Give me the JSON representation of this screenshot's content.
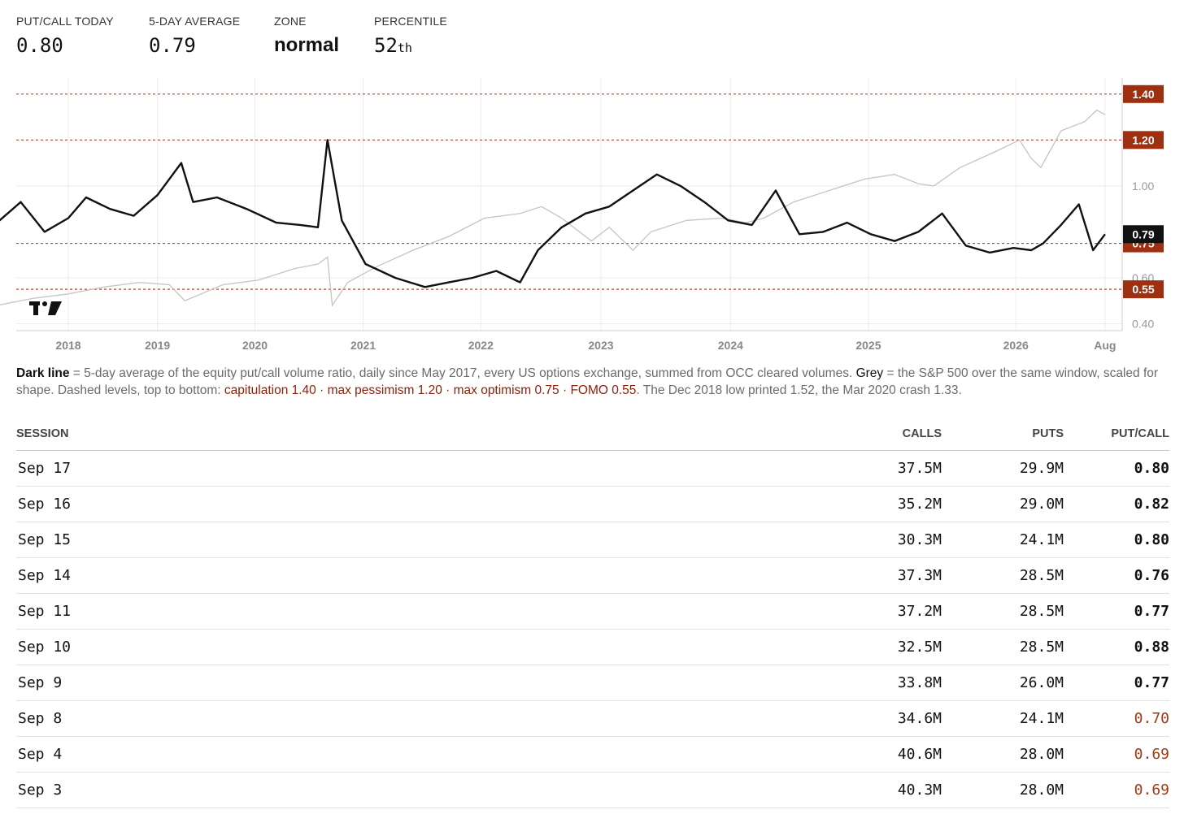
{
  "stats": [
    {
      "label": "PUT/CALL TODAY",
      "value": "0.80"
    },
    {
      "label": "5-DAY AVERAGE",
      "value": "0.79"
    },
    {
      "label": "ZONE",
      "value": "normal"
    },
    {
      "label": "PERCENTILE",
      "value": "52",
      "suffix": "th"
    }
  ],
  "caption": {
    "lead": "Dark line",
    "text1": " = 5-day average of the equity put/call volume ratio, daily since May 2017, every US options exchange, summed from OCC cleared volumes. ",
    "grey_word": "Grey",
    "text2": " = the S&P 500 over the same window, scaled for shape. Dashed levels, top to bottom: ",
    "levels_text": "capitulation 1.40 · max pessimism 1.20 · max optimism 0.75 · FOMO 0.55",
    "text3": ". The Dec 2018 low printed 1.52, the Mar 2020 crash 1.33."
  },
  "table": {
    "headers": {
      "session": "SESSION",
      "calls": "CALLS",
      "puts": "PUTS",
      "ratio": "PUT/CALL"
    },
    "rows": [
      {
        "session": "Sep 17",
        "calls": "37.5M",
        "puts": "29.9M",
        "ratio": "0.80",
        "low": false
      },
      {
        "session": "Sep 16",
        "calls": "35.2M",
        "puts": "29.0M",
        "ratio": "0.82",
        "low": false
      },
      {
        "session": "Sep 15",
        "calls": "30.3M",
        "puts": "24.1M",
        "ratio": "0.80",
        "low": false
      },
      {
        "session": "Sep 14",
        "calls": "37.3M",
        "puts": "28.5M",
        "ratio": "0.76",
        "low": false
      },
      {
        "session": "Sep 11",
        "calls": "37.2M",
        "puts": "28.5M",
        "ratio": "0.77",
        "low": false
      },
      {
        "session": "Sep 10",
        "calls": "32.5M",
        "puts": "28.5M",
        "ratio": "0.88",
        "low": false
      },
      {
        "session": "Sep 9",
        "calls": "33.8M",
        "puts": "26.0M",
        "ratio": "0.77",
        "low": false
      },
      {
        "session": "Sep 8",
        "calls": "34.6M",
        "puts": "24.1M",
        "ratio": "0.70",
        "low": true
      },
      {
        "session": "Sep 4",
        "calls": "40.6M",
        "puts": "28.0M",
        "ratio": "0.69",
        "low": true
      },
      {
        "session": "Sep 3",
        "calls": "40.3M",
        "puts": "28.0M",
        "ratio": "0.69",
        "low": true
      }
    ]
  },
  "chart_data": {
    "type": "line",
    "x_ticks": [
      "2018",
      "2019",
      "2020",
      "2021",
      "2022",
      "2023",
      "2024",
      "2025",
      "2026",
      "Aug"
    ],
    "y_ticks": [
      0.4,
      0.6,
      1.0
    ],
    "ylim": [
      0.37,
      1.47
    ],
    "levels": [
      {
        "value": 1.4,
        "label": "1.40"
      },
      {
        "value": 1.2,
        "label": "1.20"
      },
      {
        "value": 0.75,
        "label": "0.75"
      },
      {
        "value": 0.55,
        "label": "0.55"
      }
    ],
    "current": {
      "value": 0.79,
      "label": "0.79"
    },
    "series": [
      {
        "x": [
          2017.4,
          2017.6,
          2017.8,
          2018.0,
          2018.15,
          2018.35,
          2018.55,
          2018.75,
          2018.95,
          2019.05,
          2019.25,
          2019.5,
          2019.75,
          2019.95,
          2020.1,
          2020.18,
          2020.3,
          2020.5,
          2020.75,
          2021.0,
          2021.2,
          2021.4,
          2021.6,
          2021.8,
          2021.95,
          2022.15,
          2022.35,
          2022.55,
          2022.75,
          2022.95,
          2023.15,
          2023.35,
          2023.55,
          2023.75,
          2023.95,
          2024.15,
          2024.35,
          2024.55,
          2024.75,
          2024.95,
          2025.15,
          2025.35,
          2025.55,
          2025.75,
          2025.95,
          2026.1,
          2026.2,
          2026.35,
          2026.5,
          2026.62,
          2026.72
        ],
        "y": [
          0.84,
          0.93,
          0.8,
          0.86,
          0.95,
          0.9,
          0.87,
          0.96,
          1.1,
          0.93,
          0.95,
          0.9,
          0.84,
          0.83,
          0.82,
          1.2,
          0.85,
          0.66,
          0.6,
          0.56,
          0.58,
          0.6,
          0.63,
          0.58,
          0.72,
          0.82,
          0.88,
          0.91,
          0.98,
          1.05,
          1.0,
          0.93,
          0.85,
          0.83,
          0.98,
          0.79,
          0.8,
          0.84,
          0.79,
          0.76,
          0.8,
          0.88,
          0.74,
          0.71,
          0.73,
          0.72,
          0.75,
          0.83,
          0.92,
          0.72,
          0.79
        ]
      },
      {
        "x": [
          2017.4,
          2017.7,
          2018.0,
          2018.3,
          2018.6,
          2018.85,
          2018.98,
          2019.3,
          2019.6,
          2019.9,
          2020.1,
          2020.18,
          2020.22,
          2020.35,
          2020.6,
          2020.9,
          2021.2,
          2021.5,
          2021.8,
          2021.98,
          2022.15,
          2022.4,
          2022.55,
          2022.75,
          2022.9,
          2023.2,
          2023.5,
          2023.7,
          2023.85,
          2024.1,
          2024.4,
          2024.7,
          2024.95,
          2025.15,
          2025.28,
          2025.5,
          2025.8,
          2026.0,
          2026.1,
          2026.18,
          2026.35,
          2026.55,
          2026.65,
          2026.72
        ],
        "y": [
          0.48,
          0.51,
          0.53,
          0.56,
          0.58,
          0.57,
          0.5,
          0.57,
          0.59,
          0.64,
          0.66,
          0.69,
          0.48,
          0.58,
          0.65,
          0.72,
          0.78,
          0.86,
          0.88,
          0.91,
          0.86,
          0.76,
          0.82,
          0.72,
          0.8,
          0.85,
          0.86,
          0.84,
          0.86,
          0.93,
          0.98,
          1.03,
          1.05,
          1.01,
          1.0,
          1.08,
          1.15,
          1.2,
          1.12,
          1.08,
          1.24,
          1.28,
          1.33,
          1.31
        ]
      }
    ]
  }
}
